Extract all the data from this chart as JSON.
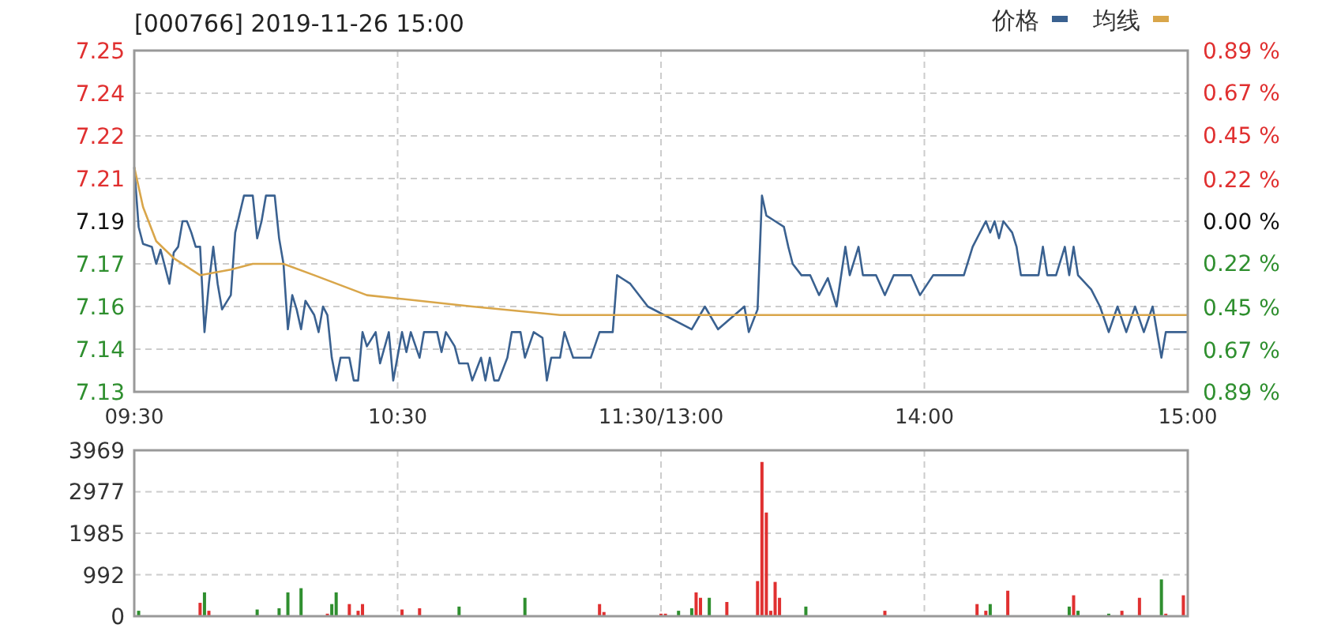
{
  "chart_data": [
    {
      "type": "line",
      "title": "[000766] 2019-11-26 15:00",
      "legend": "top right",
      "grid": true,
      "marker": "none",
      "line_style": "solid",
      "categories": [
        "09:30",
        null,
        null,
        null,
        null,
        null,
        null,
        null,
        null,
        null,
        null,
        null,
        null,
        null,
        null,
        null,
        null,
        null,
        null,
        null,
        null,
        null,
        null,
        null,
        null,
        null,
        null,
        null,
        null,
        null,
        null,
        null,
        null,
        null,
        null,
        null,
        null,
        null,
        null,
        null,
        null,
        null,
        null,
        null,
        null,
        null,
        null,
        null,
        null,
        null,
        null,
        null,
        null,
        null,
        null,
        null,
        null,
        null,
        null,
        null,
        "10:30",
        null,
        null,
        null,
        null,
        null,
        null,
        null,
        null,
        null,
        null,
        null,
        null,
        null,
        null,
        null,
        null,
        null,
        null,
        null,
        null,
        null,
        null,
        null,
        null,
        null,
        null,
        null,
        null,
        null,
        null,
        null,
        null,
        null,
        null,
        null,
        null,
        null,
        null,
        null,
        null,
        null,
        null,
        null,
        null,
        null,
        null,
        null,
        null,
        null,
        null,
        null,
        null,
        null,
        null,
        null,
        null,
        null,
        null,
        null,
        "11:30/13:00",
        null,
        null,
        null,
        null,
        null,
        null,
        null,
        null,
        null,
        null,
        null,
        null,
        null,
        null,
        null,
        null,
        null,
        null,
        null,
        null,
        null,
        null,
        null,
        null,
        null,
        null,
        null,
        null,
        null,
        null,
        null,
        null,
        null,
        null,
        null,
        null,
        null,
        null,
        null,
        null,
        null,
        null,
        null,
        null,
        null,
        null,
        null,
        null,
        null,
        null,
        null,
        null,
        null,
        null,
        null,
        null,
        null,
        null,
        null,
        "14:00",
        null,
        null,
        null,
        null,
        null,
        null,
        null,
        null,
        null,
        null,
        null,
        null,
        null,
        null,
        null,
        null,
        null,
        null,
        null,
        null,
        null,
        null,
        null,
        null,
        null,
        null,
        null,
        null,
        null,
        null,
        null,
        null,
        null,
        null,
        null,
        null,
        null,
        null,
        null,
        null,
        null,
        null,
        null,
        null,
        null,
        null,
        null,
        null,
        null,
        null,
        null,
        null,
        null,
        null,
        null,
        null,
        null,
        null,
        null,
        "15:00"
      ],
      "ylim": [
        7.13,
        7.25
      ],
      "yticks": [
        {
          "value": 7.13,
          "label": "7.13"
        },
        {
          "value": 7.145,
          "label": "7.14"
        },
        {
          "value": 7.16,
          "label": "7.16"
        },
        {
          "value": 7.175,
          "label": "7.17"
        },
        {
          "value": 7.19,
          "label": "7.19"
        },
        {
          "value": 7.205,
          "label": "7.21"
        },
        {
          "value": 7.22,
          "label": "7.22"
        },
        {
          "value": 7.235,
          "label": "7.24"
        },
        {
          "value": 7.25,
          "label": "7.25"
        }
      ],
      "y2lim": [
        -0.89,
        0.89
      ],
      "y2ticks": [
        {
          "value": -0.89,
          "label": "0.89 %"
        },
        {
          "value": -0.67,
          "label": "0.67 %"
        },
        {
          "value": -0.45,
          "label": "0.45 %"
        },
        {
          "value": -0.22,
          "label": "0.22 %"
        },
        {
          "value": 0,
          "label": "0.00 %"
        },
        {
          "value": 0.22,
          "label": "0.22 %"
        },
        {
          "value": 0.45,
          "label": "0.45 %"
        },
        {
          "value": 0.67,
          "label": "0.67 %"
        },
        {
          "value": 0.89,
          "label": "0.89 %"
        }
      ],
      "series": [
        {
          "name": "价格",
          "color": "#3a6190",
          "values": [
            7.209,
            7.188,
            7.182,
            null,
            7.181,
            7.175,
            7.18,
            null,
            7.168,
            7.179,
            7.181,
            7.19,
            7.19,
            7.186,
            7.181,
            7.181,
            7.151,
            7.168,
            7.181,
            7.168,
            7.159,
            null,
            7.164,
            7.186,
            null,
            7.199,
            null,
            7.199,
            7.184,
            7.19,
            7.199,
            null,
            7.199,
            7.184,
            7.175,
            7.152,
            7.164,
            7.159,
            7.152,
            7.162,
            null,
            7.157,
            7.151,
            7.16,
            7.157,
            7.142,
            7.134,
            7.142,
            null,
            7.142,
            7.134,
            7.134,
            7.151,
            7.146,
            null,
            7.151,
            7.14,
            null,
            7.151,
            7.134,
            null,
            7.151,
            7.144,
            7.151,
            null,
            7.142,
            7.151,
            null,
            null,
            7.151,
            7.144,
            7.151,
            null,
            7.146,
            7.14,
            null,
            7.14,
            7.134,
            null,
            7.142,
            7.134,
            7.142,
            7.134,
            7.134,
            null,
            7.142,
            7.151,
            null,
            7.151,
            7.142,
            null,
            7.151,
            null,
            7.149,
            7.134,
            7.142,
            null,
            7.142,
            7.151,
            null,
            7.142,
            null,
            null,
            null,
            7.142,
            null,
            7.151,
            null,
            null,
            7.151,
            7.171,
            7.17,
            null,
            7.168,
            null,
            null,
            null,
            7.16,
            null,
            null,
            null,
            null,
            null,
            null,
            null,
            null,
            null,
            7.152,
            null,
            null,
            7.16,
            null,
            null,
            7.152,
            null,
            null,
            null,
            null,
            null,
            7.16,
            7.151,
            null,
            7.159,
            7.199,
            7.192,
            null,
            7.19,
            null,
            7.188,
            7.181,
            7.175,
            null,
            7.171,
            null,
            7.171,
            null,
            7.164,
            null,
            7.17,
            null,
            7.16,
            null,
            7.181,
            7.171,
            null,
            7.181,
            7.171,
            null,
            null,
            7.171,
            null,
            7.164,
            null,
            7.171,
            null,
            null,
            null,
            7.171,
            null,
            7.164,
            null,
            null,
            7.171,
            null,
            null,
            null,
            null,
            7.171,
            null,
            7.171,
            null,
            7.181,
            null,
            null,
            7.19,
            7.186,
            7.19,
            7.184,
            7.19,
            null,
            7.186,
            7.181,
            7.171,
            null,
            null,
            null,
            7.171,
            7.181,
            7.171,
            null,
            7.171,
            null,
            7.181,
            7.171,
            7.181,
            7.171,
            null,
            null,
            7.166,
            null,
            7.16,
            null,
            7.151,
            null,
            7.16,
            null,
            7.151,
            null,
            7.16,
            null,
            7.151,
            null,
            7.16,
            null,
            7.142,
            7.151,
            null,
            null,
            null,
            null,
            7.151
          ]
        },
        {
          "name": "均线",
          "color": "#d9a64a",
          "values": [
            7.209,
            null,
            7.195,
            null,
            null,
            7.183,
            null,
            null,
            null,
            7.177,
            null,
            null,
            null,
            null,
            null,
            7.171,
            null,
            null,
            null,
            null,
            null,
            null,
            7.173,
            null,
            null,
            null,
            null,
            7.175,
            null,
            null,
            null,
            null,
            null,
            null,
            7.175,
            null,
            null,
            null,
            null,
            null,
            null,
            7.171,
            null,
            null,
            null,
            null,
            null,
            null,
            null,
            null,
            null,
            null,
            null,
            7.164,
            null,
            null,
            null,
            null,
            null,
            null,
            null,
            null,
            null,
            null,
            null,
            null,
            null,
            null,
            null,
            null,
            null,
            null,
            null,
            null,
            null,
            null,
            null,
            7.16,
            null,
            null,
            null,
            null,
            null,
            null,
            null,
            null,
            null,
            null,
            null,
            null,
            null,
            null,
            null,
            null,
            null,
            null,
            null,
            7.157,
            null,
            null,
            null,
            null,
            null,
            null,
            null,
            null,
            null,
            null,
            null,
            null,
            null,
            null,
            null,
            null,
            null,
            null,
            null,
            null,
            null,
            null,
            7.157,
            null,
            null,
            null,
            null,
            null,
            null,
            null,
            null,
            null,
            null,
            null,
            null,
            null,
            null,
            null,
            null,
            null,
            null,
            null,
            null,
            null,
            null,
            null,
            null,
            null,
            null,
            null,
            null,
            null,
            null,
            null,
            null,
            null,
            null,
            null,
            null,
            null,
            null,
            null,
            null,
            null,
            null,
            null,
            null,
            null,
            null,
            null,
            null,
            null,
            null,
            null,
            null,
            null,
            null,
            null,
            null,
            null,
            null,
            null,
            7.157,
            null,
            null,
            null,
            null,
            null,
            null,
            null,
            null,
            null,
            null,
            null,
            null,
            null,
            null,
            null,
            null,
            null,
            null,
            null,
            null,
            null,
            null,
            null,
            null,
            null,
            null,
            null,
            null,
            null,
            null,
            null,
            null,
            null,
            null,
            null,
            null,
            null,
            null,
            null,
            null,
            null,
            null,
            null,
            null,
            null,
            null,
            null,
            null,
            null,
            null,
            null,
            null,
            null,
            null,
            null,
            null,
            null,
            null,
            null,
            7.157
          ]
        }
      ]
    },
    {
      "type": "bar",
      "grid": true,
      "tick_labels": "y",
      "ylim": [
        0,
        3969
      ],
      "yticks": [
        0,
        992,
        1985,
        2977,
        3969
      ],
      "categories": [
        null,
        null,
        null,
        null,
        null,
        null,
        null,
        null,
        null,
        null,
        null,
        null,
        null,
        null,
        null,
        null,
        null,
        null,
        null,
        null,
        null,
        null,
        null,
        null,
        null,
        null,
        null,
        null,
        null,
        null,
        null,
        null,
        null,
        null,
        null,
        null,
        null,
        null,
        null,
        null,
        null,
        null,
        null,
        null,
        null,
        null,
        null,
        null,
        null,
        null,
        null,
        null,
        null,
        null,
        null,
        null,
        null,
        null,
        null,
        null,
        null,
        null,
        null,
        null,
        null,
        null,
        null,
        null,
        null,
        null,
        null,
        null,
        null,
        null,
        null,
        null,
        null,
        null,
        null,
        null,
        null,
        null,
        null,
        null,
        null,
        null,
        null,
        null,
        null,
        null,
        null,
        null,
        null,
        null,
        null,
        null,
        null,
        null,
        null,
        null,
        null,
        null,
        null,
        null,
        null,
        null,
        null,
        null,
        null,
        null,
        null,
        null,
        null,
        null,
        null,
        null,
        null,
        null,
        null,
        null,
        null,
        null,
        null,
        null,
        null,
        null,
        null,
        null,
        null,
        null,
        null,
        null,
        null,
        null,
        null,
        null,
        null,
        null,
        null,
        null,
        null,
        null,
        null,
        null,
        null,
        null,
        null,
        null,
        null,
        null,
        null,
        null,
        null,
        null,
        null,
        null,
        null,
        null,
        null,
        null,
        null,
        null,
        null,
        null,
        null,
        null,
        null,
        null,
        null,
        null,
        null,
        null,
        null,
        null,
        null,
        null,
        null,
        null,
        null,
        null,
        null,
        null,
        null,
        null,
        null,
        null,
        null,
        null,
        null,
        null,
        null,
        null,
        null,
        null,
        null,
        null,
        null,
        null,
        null,
        null,
        null,
        null,
        null,
        null,
        null,
        null,
        null,
        null,
        null,
        null,
        null,
        null,
        null,
        null,
        null,
        null,
        null,
        null,
        null,
        null,
        null,
        null,
        null,
        null,
        null,
        null,
        null,
        null,
        null,
        null,
        null,
        null,
        null,
        null,
        null,
        null,
        null,
        null,
        null,
        null,
        null
      ],
      "values": [
        null,
        130,
        null,
        null,
        null,
        null,
        null,
        null,
        null,
        null,
        null,
        null,
        null,
        null,
        null,
        320,
        570,
        130,
        null,
        null,
        null,
        null,
        null,
        null,
        null,
        null,
        null,
        null,
        160,
        null,
        null,
        null,
        null,
        190,
        null,
        570,
        null,
        null,
        670,
        null,
        null,
        null,
        null,
        null,
        60,
        290,
        570,
        null,
        null,
        290,
        null,
        130,
        290,
        null,
        null,
        null,
        null,
        null,
        null,
        null,
        null,
        160,
        null,
        null,
        null,
        190,
        null,
        null,
        null,
        null,
        null,
        null,
        null,
        null,
        230,
        null,
        null,
        null,
        null,
        null,
        null,
        null,
        null,
        null,
        null,
        null,
        null,
        null,
        null,
        440,
        null,
        null,
        null,
        null,
        null,
        null,
        null,
        null,
        null,
        null,
        null,
        null,
        null,
        null,
        null,
        null,
        290,
        100,
        null,
        null,
        null,
        null,
        null,
        null,
        null,
        null,
        null,
        null,
        null,
        null,
        60,
        60,
        null,
        null,
        130,
        null,
        null,
        190,
        570,
        440,
        null,
        440,
        null,
        null,
        null,
        340,
        null,
        null,
        null,
        null,
        null,
        null,
        840,
        3690,
        2480,
        130,
        820,
        440,
        null,
        null,
        null,
        null,
        null,
        230,
        null,
        null,
        null,
        null,
        null,
        null,
        null,
        null,
        null,
        null,
        null,
        null,
        null,
        null,
        null,
        null,
        null,
        130,
        null,
        null,
        null,
        null,
        null,
        null,
        null,
        null,
        null,
        null,
        null,
        null,
        null,
        null,
        null,
        null,
        null,
        null,
        null,
        null,
        290,
        null,
        130,
        290,
        null,
        null,
        null,
        610,
        null,
        null,
        null,
        null,
        null,
        null,
        null,
        null,
        null,
        null,
        null,
        null,
        null,
        230,
        500,
        130,
        null,
        null,
        null,
        null,
        null,
        null,
        60,
        null,
        null,
        130,
        null,
        null,
        null,
        440,
        null,
        null,
        null,
        null,
        880,
        60,
        null,
        null,
        null,
        500,
        null
      ],
      "colors": [
        null,
        "#2f8f2f",
        null,
        null,
        null,
        null,
        null,
        null,
        null,
        null,
        null,
        null,
        null,
        null,
        null,
        "#e03030",
        "#2f8f2f",
        "#e03030",
        null,
        null,
        null,
        null,
        null,
        null,
        null,
        null,
        null,
        null,
        "#2f8f2f",
        null,
        null,
        null,
        null,
        "#2f8f2f",
        null,
        "#2f8f2f",
        null,
        null,
        "#2f8f2f",
        null,
        null,
        null,
        null,
        null,
        "#e03030",
        "#2f8f2f",
        "#2f8f2f",
        null,
        null,
        "#e03030",
        null,
        "#e03030",
        "#e03030",
        null,
        null,
        null,
        null,
        null,
        null,
        null,
        null,
        "#e03030",
        null,
        null,
        null,
        "#e03030",
        null,
        null,
        null,
        null,
        null,
        null,
        null,
        null,
        "#2f8f2f",
        null,
        null,
        null,
        null,
        null,
        null,
        null,
        null,
        null,
        null,
        null,
        null,
        null,
        null,
        "#2f8f2f",
        null,
        null,
        null,
        null,
        null,
        null,
        null,
        null,
        null,
        null,
        null,
        null,
        null,
        null,
        null,
        null,
        "#e03030",
        "#e03030",
        null,
        null,
        null,
        null,
        null,
        null,
        null,
        null,
        null,
        null,
        null,
        null,
        "#e03030",
        "#e03030",
        null,
        null,
        "#2f8f2f",
        null,
        null,
        "#2f8f2f",
        "#e03030",
        "#e03030",
        null,
        "#2f8f2f",
        null,
        null,
        null,
        "#e03030",
        null,
        null,
        null,
        null,
        null,
        null,
        "#e03030",
        "#e03030",
        "#e03030",
        "#e03030",
        "#e03030",
        "#e03030",
        null,
        null,
        null,
        null,
        null,
        "#2f8f2f",
        null,
        null,
        null,
        null,
        null,
        null,
        null,
        null,
        null,
        null,
        null,
        null,
        null,
        null,
        null,
        null,
        null,
        "#e03030",
        null,
        null,
        null,
        null,
        null,
        null,
        null,
        null,
        null,
        null,
        null,
        null,
        null,
        null,
        null,
        null,
        null,
        null,
        null,
        null,
        "#e03030",
        null,
        "#e03030",
        "#2f8f2f",
        null,
        null,
        null,
        "#e03030",
        null,
        null,
        null,
        null,
        null,
        null,
        null,
        null,
        null,
        null,
        null,
        null,
        null,
        "#2f8f2f",
        "#e03030",
        "#2f8f2f",
        null,
        null,
        null,
        null,
        null,
        null,
        "#2f8f2f",
        null,
        null,
        "#e03030",
        null,
        null,
        null,
        "#e03030",
        null,
        null,
        null,
        null,
        "#2f8f2f",
        "#e03030",
        null,
        null,
        null,
        "#e03030",
        null
      ]
    }
  ]
}
